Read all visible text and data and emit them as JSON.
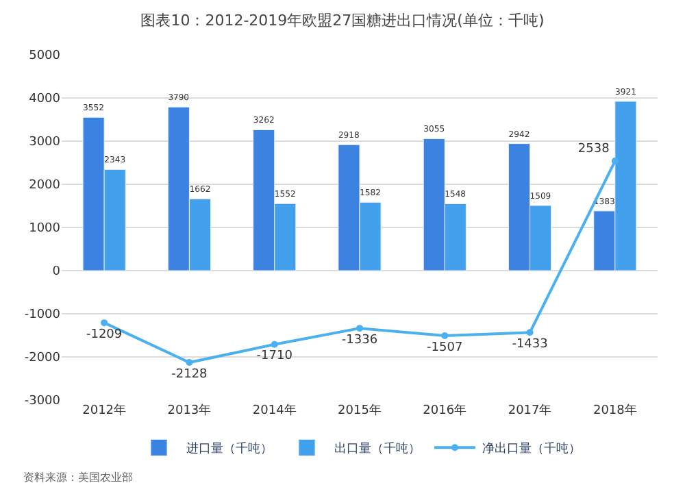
{
  "chart_data": {
    "type": "bar",
    "title": "图表10：2012-2019年欧盟27国糖进出口情况(单位：千吨)",
    "categories": [
      "2012年",
      "2013年",
      "2014年",
      "2015年",
      "2016年",
      "2017年",
      "2018年"
    ],
    "series": [
      {
        "name": "进口量（千吨）",
        "color": "#3c82e0",
        "values": [
          3552,
          3790,
          3262,
          2918,
          3055,
          2942,
          1383
        ]
      },
      {
        "name": "出口量（千吨）",
        "color": "#43a0ec",
        "values": [
          2343,
          1662,
          1552,
          1582,
          1548,
          1509,
          3921
        ]
      },
      {
        "name": "净出口量（千吨）",
        "type": "line",
        "color": "#4ab0f0",
        "marker": "circle",
        "values": [
          -1209,
          -2128,
          -1710,
          -1336,
          -1507,
          -1433,
          2538
        ]
      }
    ],
    "ylim": [
      -3000,
      5000
    ],
    "yticks": [
      -3000,
      -2000,
      -1000,
      0,
      1000,
      2000,
      3000,
      4000,
      5000
    ],
    "grid": "y",
    "legend": "bottom",
    "data_labels": true,
    "annotations": [
      "资料来源：美国农业部"
    ]
  }
}
